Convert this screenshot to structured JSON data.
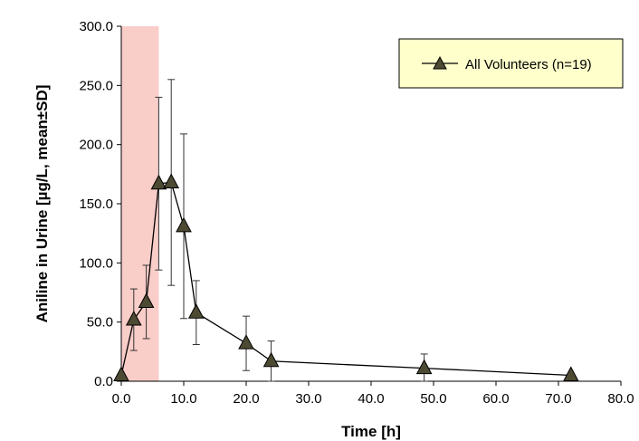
{
  "chart_data": {
    "type": "line",
    "xlabel": "Time [h]",
    "ylabel": "Aniline in Urine [µg/L, mean±SD]",
    "xlim": [
      0,
      80
    ],
    "ylim": [
      0,
      300
    ],
    "x_ticks": [
      "0.0",
      "10.0",
      "20.0",
      "30.0",
      "40.0",
      "50.0",
      "60.0",
      "70.0",
      "80.0"
    ],
    "y_ticks": [
      "0.0",
      "50.0",
      "100.0",
      "150.0",
      "200.0",
      "250.0",
      "300.0"
    ],
    "grid": false,
    "legend_position": "top-right",
    "shaded_region": {
      "x_start": 0,
      "x_end": 6,
      "color": "#f9cdc8"
    },
    "series": [
      {
        "name": "All Volunteers (n=19)",
        "marker": "triangle",
        "marker_color": "#4d4a33",
        "line_color": "#000000",
        "x": [
          0,
          2,
          4,
          6,
          8,
          10,
          12,
          20,
          24,
          48.5,
          72
        ],
        "y": [
          5,
          52,
          67,
          167,
          168,
          131,
          58,
          32,
          17,
          11,
          5
        ],
        "sd": [
          0,
          26,
          31,
          73,
          87,
          78,
          27,
          23,
          17,
          12,
          0
        ]
      }
    ]
  }
}
